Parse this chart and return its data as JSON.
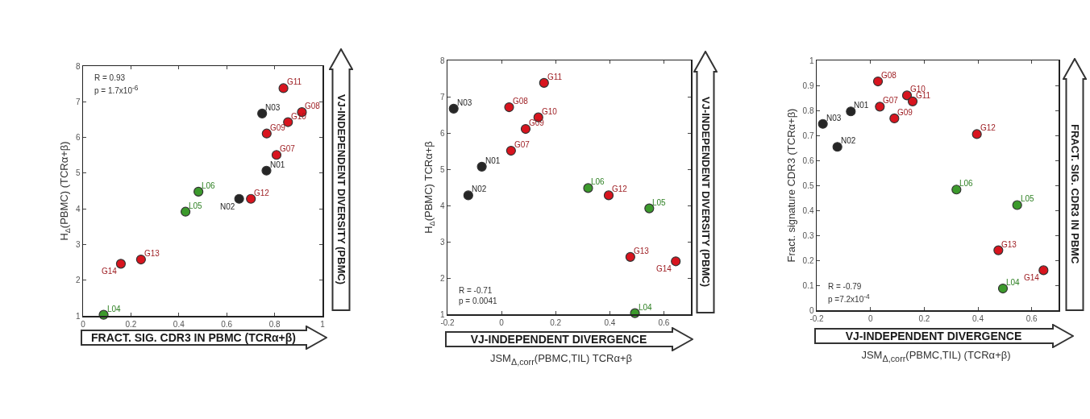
{
  "chart_data": [
    {
      "type": "scatter",
      "marker": "circle",
      "grid": false,
      "ylabel": "H$_{Δ}$(PBMC) (TCRα+β)",
      "y2label": "VJ-INDEPENDENT DIVERSITY (PBMC)",
      "xlim": [
        0,
        1
      ],
      "xticks": [
        0,
        0.2,
        0.4,
        0.6,
        0.8,
        1
      ],
      "ylim": [
        1,
        8
      ],
      "yticks": [
        1,
        2,
        3,
        4,
        5,
        6,
        7,
        8
      ],
      "series": [
        {
          "color": "#262626",
          "x": [
            0.766,
            0.652,
            0.748
          ],
          "values": [
            5.07,
            4.28,
            6.67
          ]
        },
        {
          "color": "#d8141e",
          "x": [
            0.808,
            0.914,
            0.767,
            0.856,
            0.837,
            0.701,
            0.242,
            0.158
          ],
          "values": [
            5.51,
            6.71,
            6.11,
            6.43,
            7.38,
            4.28,
            2.58,
            2.46
          ]
        },
        {
          "color": "#3c9a2c",
          "x": [
            0.086,
            0.428,
            0.482
          ],
          "values": [
            1.03,
            3.92,
            4.48
          ]
        }
      ],
      "annotations": [
        "R = 0.93",
        "p = 1.7x10$^{-6}$",
        "FRACT. SIG. CDR3 IN PBMC (TCRα+β)",
        {
          "text": "N01",
          "x": 0.766,
          "y": 5.07
        },
        {
          "text": "N02",
          "x": 0.652,
          "y": 4.28
        },
        {
          "text": "N03",
          "x": 0.748,
          "y": 6.67
        },
        {
          "text": "G07",
          "x": 0.808,
          "y": 5.51
        },
        {
          "text": "G08",
          "x": 0.914,
          "y": 6.71
        },
        {
          "text": "G09",
          "x": 0.767,
          "y": 6.11
        },
        {
          "text": "G10",
          "x": 0.856,
          "y": 6.43
        },
        {
          "text": "G11",
          "x": 0.837,
          "y": 7.38
        },
        {
          "text": "G12",
          "x": 0.701,
          "y": 4.28
        },
        {
          "text": "G13",
          "x": 0.242,
          "y": 2.58
        },
        {
          "text": "G14",
          "x": 0.158,
          "y": 2.46
        },
        {
          "text": "L04",
          "x": 0.086,
          "y": 1.03
        },
        {
          "text": "L05",
          "x": 0.428,
          "y": 3.92
        },
        {
          "text": "L06",
          "x": 0.482,
          "y": 4.48
        }
      ]
    },
    {
      "type": "scatter",
      "marker": "circle",
      "grid": false,
      "xlabel": "JSM$_{Δ,corr}$(PBMC,TIL) TCRα+β",
      "ylabel": "H$_{Δ}$(PBMC) TCRα+β",
      "y2label": "VJ-INDEPENDENT DIVERSITY (PBMC)",
      "xlim": [
        -0.2,
        0.7
      ],
      "xticks": [
        -0.2,
        0,
        0.2,
        0.4,
        0.6
      ],
      "ylim": [
        1,
        8
      ],
      "yticks": [
        1,
        2,
        3,
        4,
        5,
        6,
        7,
        8
      ],
      "series": [
        {
          "color": "#262626",
          "x": [
            -0.073,
            -0.123,
            -0.177
          ],
          "values": [
            5.07,
            4.28,
            6.67
          ]
        },
        {
          "color": "#d8141e",
          "x": [
            0.035,
            0.028,
            0.089,
            0.136,
            0.157,
            0.396,
            0.476,
            0.644
          ],
          "values": [
            5.51,
            6.71,
            6.11,
            6.43,
            7.38,
            4.28,
            2.58,
            2.46
          ]
        },
        {
          "color": "#3c9a2c",
          "x": [
            0.493,
            0.546,
            0.32
          ],
          "values": [
            1.03,
            3.92,
            4.48
          ]
        }
      ],
      "annotations": [
        "R = -0.71",
        "p = 0.0041",
        "VJ-INDEPENDENT DIVERGENCE",
        {
          "text": "N01",
          "x": -0.073,
          "y": 5.07
        },
        {
          "text": "N02",
          "x": -0.123,
          "y": 4.28
        },
        {
          "text": "N03",
          "x": -0.177,
          "y": 6.67
        },
        {
          "text": "G07",
          "x": 0.035,
          "y": 5.51
        },
        {
          "text": "G08",
          "x": 0.028,
          "y": 6.71
        },
        {
          "text": "G09",
          "x": 0.089,
          "y": 6.11
        },
        {
          "text": "G10",
          "x": 0.136,
          "y": 6.43
        },
        {
          "text": "G11",
          "x": 0.157,
          "y": 7.38
        },
        {
          "text": "G12",
          "x": 0.396,
          "y": 4.28
        },
        {
          "text": "G13",
          "x": 0.476,
          "y": 2.58
        },
        {
          "text": "G14",
          "x": 0.644,
          "y": 2.46
        },
        {
          "text": "L04",
          "x": 0.493,
          "y": 1.03
        },
        {
          "text": "L05",
          "x": 0.546,
          "y": 3.92
        },
        {
          "text": "L06",
          "x": 0.32,
          "y": 4.48
        }
      ]
    },
    {
      "type": "scatter",
      "marker": "circle",
      "grid": false,
      "xlabel": "JSM$_{Δ,corr}$(PBMC,TIL) (TCRα+β)",
      "ylabel": "Fract. signature CDR3 (TCRα+β)",
      "y2label": "FRACT. SIG. CDR3 IN PBMC",
      "xlim": [
        -0.2,
        0.7
      ],
      "xticks": [
        -0.2,
        0,
        0.2,
        0.4,
        0.6
      ],
      "ylim": [
        0,
        1
      ],
      "yticks": [
        0,
        0.1,
        0.2,
        0.3,
        0.4,
        0.5,
        0.6,
        0.7,
        0.8,
        0.9,
        1
      ],
      "series": [
        {
          "color": "#262626",
          "x": [
            -0.073,
            -0.123,
            -0.177
          ],
          "values": [
            0.796,
            0.654,
            0.746
          ]
        },
        {
          "color": "#d8141e",
          "x": [
            0.035,
            0.028,
            0.089,
            0.136,
            0.157,
            0.396,
            0.476,
            0.644
          ],
          "values": [
            0.815,
            0.916,
            0.768,
            0.86,
            0.836,
            0.705,
            0.24,
            0.16
          ]
        },
        {
          "color": "#3c9a2c",
          "x": [
            0.493,
            0.546,
            0.32
          ],
          "values": [
            0.087,
            0.421,
            0.483
          ]
        }
      ],
      "annotations": [
        "R = -0.79",
        "p =7.2x10$^{-4}$",
        "VJ-INDEPENDENT DIVERGENCE",
        {
          "text": "N01",
          "x": -0.073,
          "y": 0.796
        },
        {
          "text": "N02",
          "x": -0.123,
          "y": 0.654
        },
        {
          "text": "N03",
          "x": -0.177,
          "y": 0.746
        },
        {
          "text": "G07",
          "x": 0.035,
          "y": 0.815
        },
        {
          "text": "G08",
          "x": 0.028,
          "y": 0.916
        },
        {
          "text": "G09",
          "x": 0.089,
          "y": 0.768
        },
        {
          "text": "G10",
          "x": 0.136,
          "y": 0.86
        },
        {
          "text": "G11",
          "x": 0.157,
          "y": 0.836
        },
        {
          "text": "G12",
          "x": 0.396,
          "y": 0.705
        },
        {
          "text": "G13",
          "x": 0.476,
          "y": 0.24
        },
        {
          "text": "G14",
          "x": 0.644,
          "y": 0.16
        },
        {
          "text": "L04",
          "x": 0.493,
          "y": 0.087
        },
        {
          "text": "L05",
          "x": 0.546,
          "y": 0.421
        },
        {
          "text": "L06",
          "x": 0.32,
          "y": 0.483
        }
      ]
    }
  ]
}
